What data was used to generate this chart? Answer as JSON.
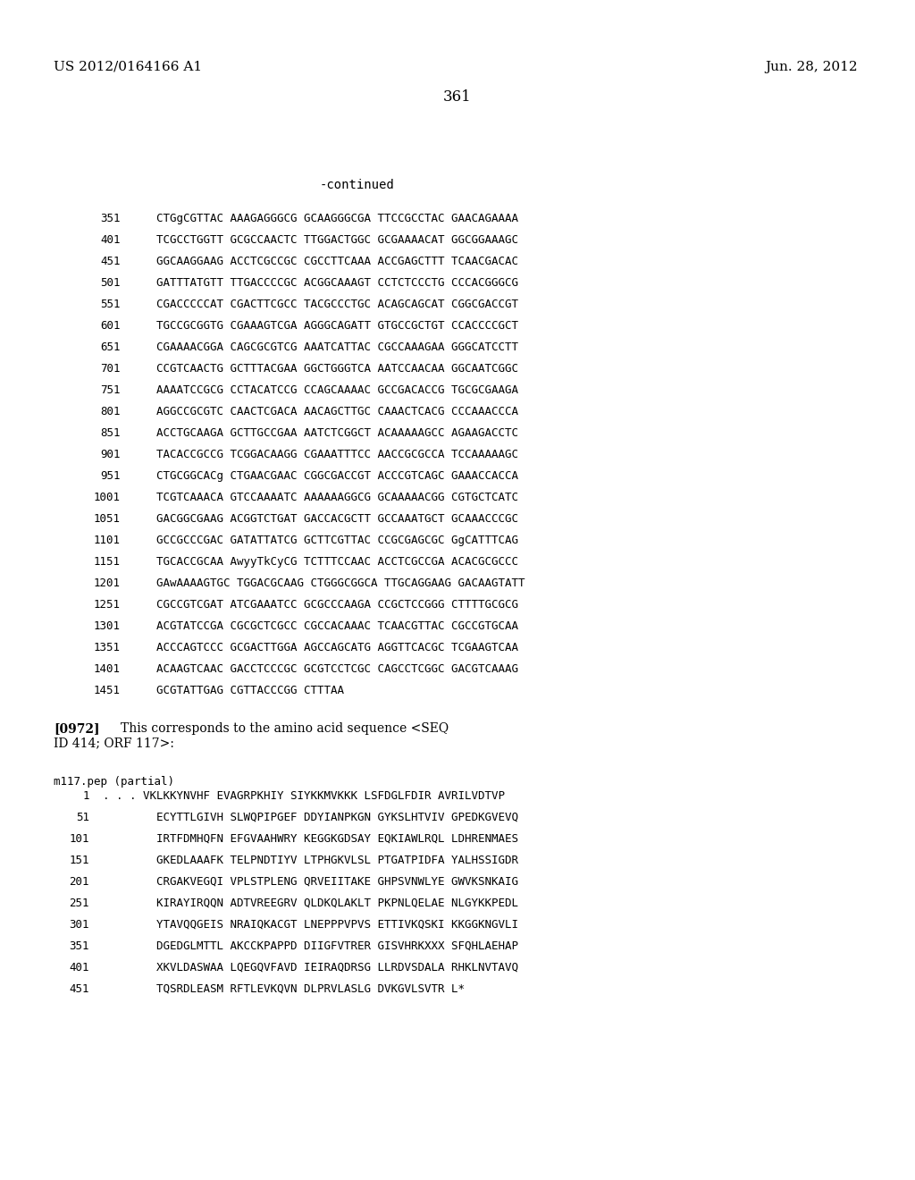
{
  "header_left": "US 2012/0164166 A1",
  "header_right": "Jun. 28, 2012",
  "page_number": "361",
  "continued_label": "-continued",
  "dna_lines": [
    [
      "351",
      "CTGgCGTTAC AAAGAGGGCG GCAAGGGCGA TTCCGCCTAC GAACAGAAAA"
    ],
    [
      "401",
      "TCGCCTGGTT GCGCCAACTC TTGGACTGGC GCGAAAACAT GGCGGAAAGC"
    ],
    [
      "451",
      "GGCAAGGAAG ACCTCGCCGC CGCCTTCAAA ACCGAGCTTT TCAACGACAC"
    ],
    [
      "501",
      "GATTTATGTT TTGACCCCGC ACGGCAAAGT CCTCTCCCTG CCCACGGGCG"
    ],
    [
      "551",
      "CGACCCCCAT CGACTTCGCC TACGCCCTGC ACAGCAGCAT CGGCGACCGT"
    ],
    [
      "601",
      "TGCCGCGGTG CGAAAGTCGA AGGGCAGATT GTGCCGCTGT CCACCCCGCT"
    ],
    [
      "651",
      "CGAAAACGGA CAGCGCGTCG AAATCATTAC CGCCAAAGAA GGGCATCCTT"
    ],
    [
      "701",
      "CCGTCAACTG GCTTTACGAA GGCTGGGTCA AATCCAACAA GGCAATCGGC"
    ],
    [
      "751",
      "AAAATCCGCG CCTACATCCG CCAGCAAAAC GCCGACACCG TGCGCGAAGA"
    ],
    [
      "801",
      "AGGCCGCGTC CAACTCGACA AACAGCTTGC CAAACTCACG CCCAAACCCA"
    ],
    [
      "851",
      "ACCTGCAAGA GCTTGCCGAA AATCTCGGCT ACAAAAAGCC AGAAGACCTC"
    ],
    [
      "901",
      "TACACCGCCG TCGGACAAGG CGAAATTTCC AACCGCGCCA TCCAAAAAGC"
    ],
    [
      "951",
      "CTGCGGCACg CTGAACGAAC CGGCGACCGT ACCCGTCAGC GAAACCACCA"
    ],
    [
      "1001",
      "TCGTCAAACA GTCCAAAATC AAAAAAGGCG GCAAAAACGG CGTGCTCATC"
    ],
    [
      "1051",
      "GACGGCGAAG ACGGTCTGAT GACCACGCTT GCCAAATGCT GCAAACCCGC"
    ],
    [
      "1101",
      "GCCGCCCGAC GATATTATCG GCTTCGTTAC CCGCGAGCGC GgCATTTCAG"
    ],
    [
      "1151",
      "TGCACCGCAA AwyyTkCyCG TCTTTCCAAC ACCTCGCCGA ACACGCGCCC"
    ],
    [
      "1201",
      "GAwAAAAGTGC TGGACGCAAG CTGGGCGGCA TTGCAGGAAG GACAAGTATT"
    ],
    [
      "1251",
      "CGCCGTCGAT ATCGAAATCC GCGCCCAAGA CCGCTCCGGG CTTTTGCGCG"
    ],
    [
      "1301",
      "ACGTATCCGA CGCGCTCGCC CGCCACAAAC TCAACGTTAC CGCCGTGCAA"
    ],
    [
      "1351",
      "ACCCAGTCCC GCGACTTGGA AGCCAGCATG AGGTTCACGC TCGAAGTCAA"
    ],
    [
      "1401",
      "ACAAGTCAAC GACCTCCCGC GCGTCCTCGC CAGCCTCGGC GACGTCAAAG"
    ],
    [
      "1451",
      "GCGTATTGAG CGTTACCCGG CTTTAA"
    ]
  ],
  "paragraph_label": "[0972]",
  "paragraph_text_line1": "This corresponds to the amino acid sequence <SEQ",
  "paragraph_text_line2": "ID 414; ORF 117>:",
  "pep_header": "m117.pep (partial)",
  "pep_lines": [
    [
      "1",
      ". . . VKLKKYNVHF EVAGRPKHIY SIYKKMVKKK LSFDGLFDIR AVRILVDTVP"
    ],
    [
      "51",
      "        ECYTTLGIVH SLWQPIPGEF DDYIANPKGN GYKSLHTVIV GPEDKGVEVQ"
    ],
    [
      "101",
      "        IRTFDMHQFN EFGVAAHWRY KEGGKGDSAY EQKIAWLRQL LDHRENMAES"
    ],
    [
      "151",
      "        GKEDLAAAFK TELPNDTIYV LTPHGKVLSL PTGATPIDFA YALHSSIGDR"
    ],
    [
      "201",
      "        CRGAKVEGQI VPLSTPLENG QRVEIITAKE GHPSVNWLYE GWVKSNKAIG"
    ],
    [
      "251",
      "        KIRAYIRQQN ADTVREEGRV QLDKQLAKLT PKPNLQELAE NLGYKKPEDL"
    ],
    [
      "301",
      "        YTAVQQGEIS NRAIQKACGT LNEPPPVPVS ETTIVKQSKI KKGGKNGVLI"
    ],
    [
      "351",
      "        DGEDGLMTTL AKCCKPAPPD DIIGFVTRER GISVHRKXXX SFQHLAEHAP"
    ],
    [
      "401",
      "        XKVLDASWAA LQEGQVFAVD IEIRAQDRSG LLRDVSDALA RHKLNVTAVQ"
    ],
    [
      "451",
      "        TQSRDLEASM RFTLEVKQVN DLPRVLASLG DVKGVLSVTR L*"
    ]
  ],
  "bg_color": "#ffffff",
  "text_color": "#000000"
}
